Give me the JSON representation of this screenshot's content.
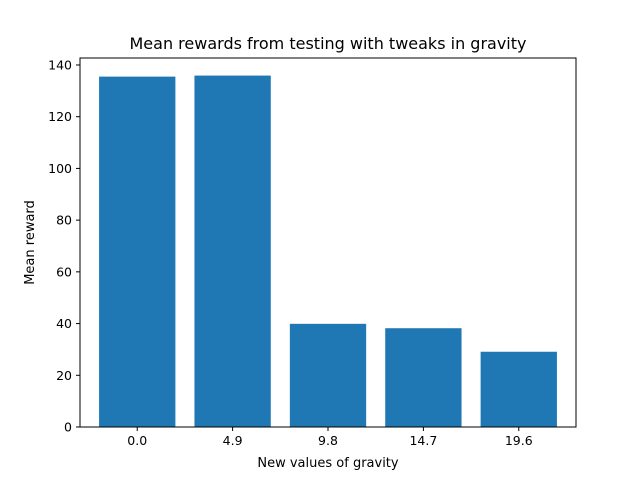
{
  "chart_data": {
    "type": "bar",
    "title": "Mean rewards from testing with tweaks in gravity",
    "xlabel": "New values of gravity",
    "ylabel": "Mean reward",
    "categories": [
      "0.0",
      "4.9",
      "9.8",
      "14.7",
      "19.6"
    ],
    "values": [
      135.5,
      135.9,
      39.9,
      38.2,
      29.1
    ],
    "ylim": [
      0,
      142.7
    ],
    "yticks": [
      0,
      20,
      40,
      60,
      80,
      100,
      120,
      140
    ],
    "grid": false,
    "legend": null
  },
  "colors": {
    "bar": "#1f77b4",
    "axes": "#000000",
    "background": "#ffffff"
  }
}
